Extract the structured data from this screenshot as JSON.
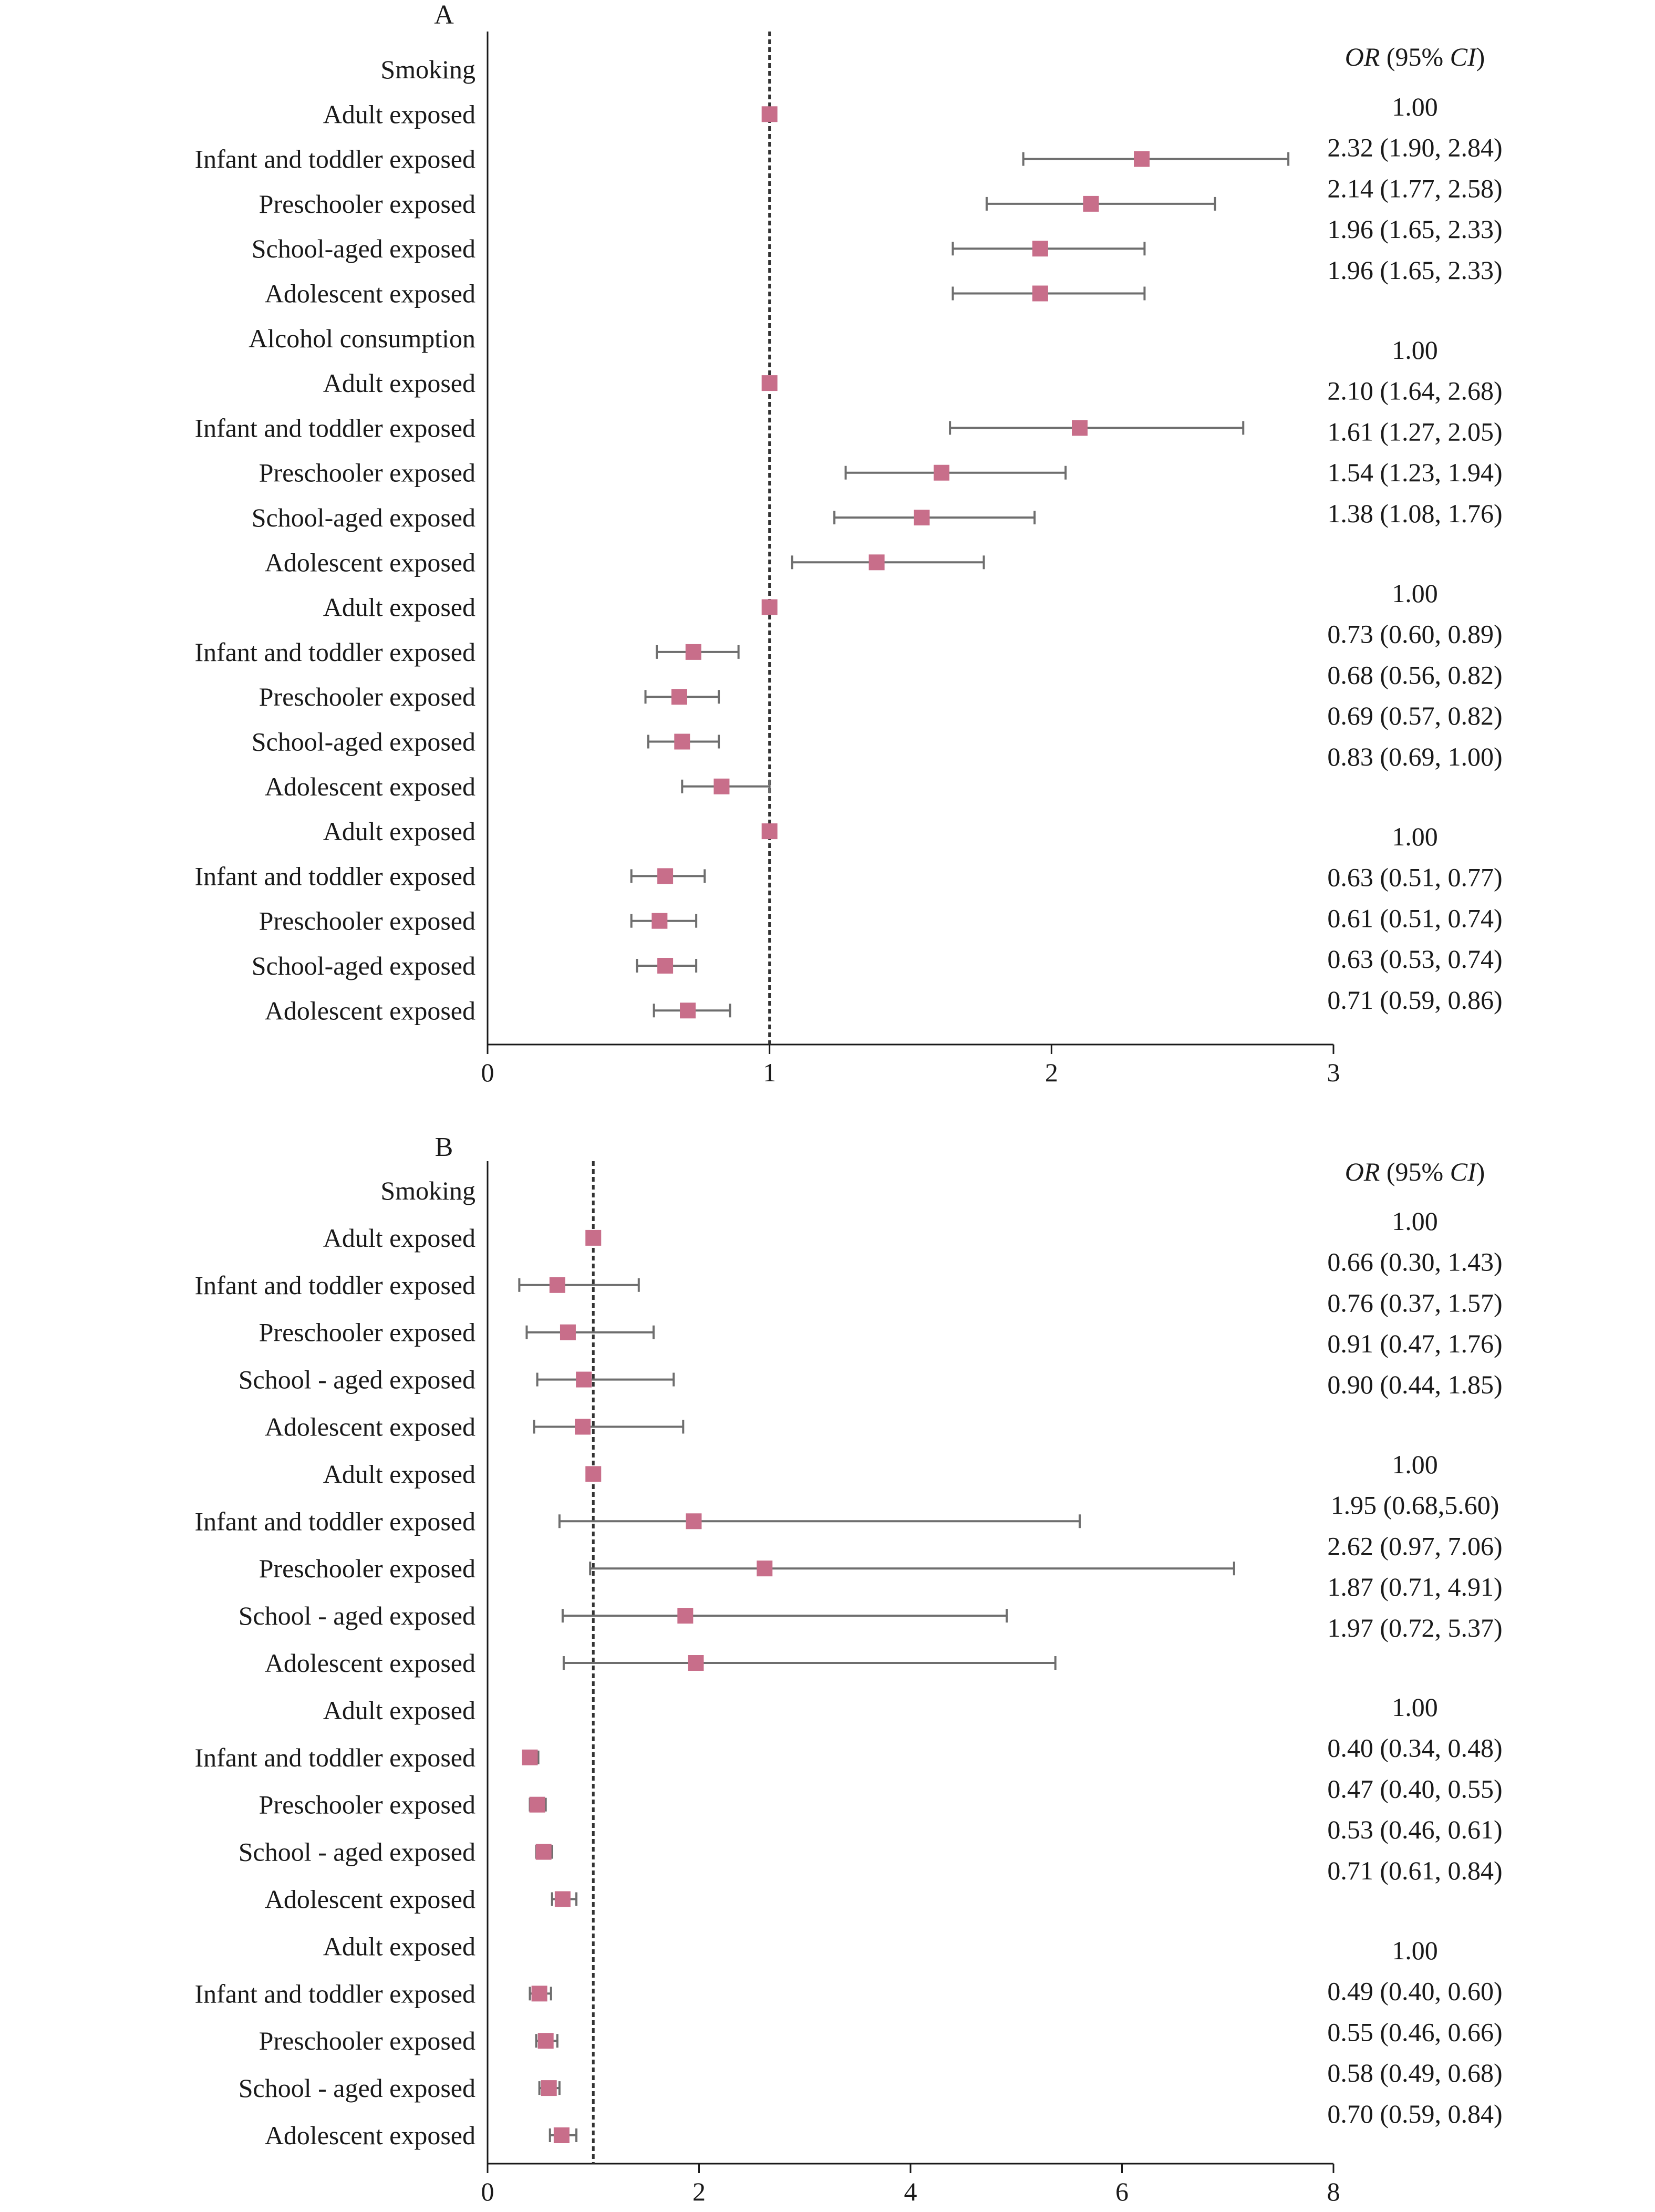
{
  "chart_data": [
    {
      "type": "forest",
      "panel_label": "A",
      "header": {
        "or": "OR",
        "ci": "CI"
      },
      "reference_line": 1,
      "xlim": [
        0,
        3
      ],
      "xticks": [
        0,
        1,
        2,
        3
      ],
      "rows": [
        {
          "label": "Smoking",
          "heading": true
        },
        {
          "label": "Adult exposed",
          "or": 1.0
        },
        {
          "label": "Infant and toddler exposed",
          "or": 2.32,
          "lo": 1.9,
          "hi": 2.84
        },
        {
          "label": "Preschooler exposed",
          "or": 2.14,
          "lo": 1.77,
          "hi": 2.58
        },
        {
          "label": "School-aged exposed",
          "or": 1.96,
          "lo": 1.65,
          "hi": 2.33
        },
        {
          "label": "Adolescent exposed",
          "or": 1.96,
          "lo": 1.65,
          "hi": 2.33
        },
        {
          "label": "Alcohol consumption",
          "heading": true
        },
        {
          "label": "Adult exposed",
          "or": 1.0
        },
        {
          "label": "Infant and toddler exposed",
          "or": 2.1,
          "lo": 1.64,
          "hi": 2.68
        },
        {
          "label": "Preschooler exposed",
          "or": 1.61,
          "lo": 1.27,
          "hi": 2.05
        },
        {
          "label": "School-aged exposed",
          "or": 1.54,
          "lo": 1.23,
          "hi": 1.94
        },
        {
          "label": "Adolescent exposed",
          "or": 1.38,
          "lo": 1.08,
          "hi": 1.76
        },
        {
          "label": "Adult exposed",
          "or": 1.0
        },
        {
          "label": "Infant and toddler exposed",
          "or": 0.73,
          "lo": 0.6,
          "hi": 0.89
        },
        {
          "label": "Preschooler exposed",
          "or": 0.68,
          "lo": 0.56,
          "hi": 0.82
        },
        {
          "label": "School-aged exposed",
          "or": 0.69,
          "lo": 0.57,
          "hi": 0.82
        },
        {
          "label": "Adolescent exposed",
          "or": 0.83,
          "lo": 0.69,
          "hi": 1.0
        },
        {
          "label": "Adult exposed",
          "or": 1.0
        },
        {
          "label": "Infant and toddler exposed",
          "or": 0.63,
          "lo": 0.51,
          "hi": 0.77
        },
        {
          "label": "Preschooler exposed",
          "or": 0.61,
          "lo": 0.51,
          "hi": 0.74
        },
        {
          "label": "School-aged exposed",
          "or": 0.63,
          "lo": 0.53,
          "hi": 0.74
        },
        {
          "label": "Adolescent exposed",
          "or": 0.71,
          "lo": 0.59,
          "hi": 0.86
        }
      ],
      "or_texts": [
        "1.00",
        "2.32 (1.90, 2.84)",
        "2.14 (1.77, 2.58)",
        "1.96 (1.65, 2.33)",
        "1.96 (1.65, 2.33)",
        "1.00",
        "2.10 (1.64, 2.68)",
        "1.61 (1.27, 2.05)",
        "1.54 (1.23, 1.94)",
        "1.38 (1.08, 1.76)",
        "1.00",
        "0.73 (0.60, 0.89)",
        "0.68 (0.56, 0.82)",
        "0.69 (0.57, 0.82)",
        "0.83 (0.69, 1.00)",
        "1.00",
        "0.63 (0.51, 0.77)",
        "0.61 (0.51, 0.74)",
        "0.63 (0.53, 0.74)",
        "0.71 (0.59, 0.86)"
      ]
    },
    {
      "type": "forest",
      "panel_label": "B",
      "header": {
        "or": "OR",
        "ci": "CI"
      },
      "reference_line": 1,
      "xlim": [
        0,
        8
      ],
      "xticks": [
        0,
        2,
        4,
        6,
        8
      ],
      "rows": [
        {
          "label": "Smoking",
          "heading": true
        },
        {
          "label": "Adult exposed",
          "or": 1.0
        },
        {
          "label": "Infant and toddler exposed",
          "or": 0.66,
          "lo": 0.3,
          "hi": 1.43
        },
        {
          "label": "Preschooler exposed",
          "or": 0.76,
          "lo": 0.37,
          "hi": 1.57
        },
        {
          "label": "School - aged exposed",
          "or": 0.91,
          "lo": 0.47,
          "hi": 1.76
        },
        {
          "label": "Adolescent exposed",
          "or": 0.9,
          "lo": 0.44,
          "hi": 1.85
        },
        {
          "label": "Adult exposed",
          "or": 1.0
        },
        {
          "label": "Infant and toddler exposed",
          "or": 1.95,
          "lo": 0.68,
          "hi": 5.6
        },
        {
          "label": "Preschooler exposed",
          "or": 2.62,
          "lo": 0.97,
          "hi": 7.06
        },
        {
          "label": "School - aged exposed",
          "or": 1.87,
          "lo": 0.71,
          "hi": 4.91
        },
        {
          "label": "Adolescent exposed",
          "or": 1.97,
          "lo": 0.72,
          "hi": 5.37
        },
        {
          "label": "Adult exposed"
        },
        {
          "label": "Infant and toddler exposed",
          "or": 0.4,
          "lo": 0.34,
          "hi": 0.48
        },
        {
          "label": "Preschooler exposed",
          "or": 0.47,
          "lo": 0.4,
          "hi": 0.55
        },
        {
          "label": "School - aged exposed",
          "or": 0.53,
          "lo": 0.46,
          "hi": 0.61
        },
        {
          "label": "Adolescent exposed",
          "or": 0.71,
          "lo": 0.61,
          "hi": 0.84
        },
        {
          "label": "Adult exposed"
        },
        {
          "label": "Infant and toddler exposed",
          "or": 0.49,
          "lo": 0.4,
          "hi": 0.6
        },
        {
          "label": "Preschooler exposed",
          "or": 0.55,
          "lo": 0.46,
          "hi": 0.66
        },
        {
          "label": "School - aged exposed",
          "or": 0.58,
          "lo": 0.49,
          "hi": 0.68
        },
        {
          "label": "Adolescent exposed",
          "or": 0.7,
          "lo": 0.59,
          "hi": 0.84
        }
      ],
      "or_texts": [
        "1.00",
        "0.66 (0.30, 1.43)",
        "0.76 (0.37, 1.57)",
        "0.91 (0.47, 1.76)",
        "0.90 (0.44, 1.85)",
        "1.00",
        "1.95 (0.68,5.60)",
        "2.62 (0.97, 7.06)",
        "1.87 (0.71, 4.91)",
        "1.97 (0.72, 5.37)",
        "1.00",
        "0.40 (0.34, 0.48)",
        "0.47 (0.40, 0.55)",
        "0.53 (0.46, 0.61)",
        "0.71 (0.61, 0.84)",
        "1.00",
        "0.49 (0.40, 0.60)",
        "0.55 (0.46, 0.66)",
        "0.58 (0.49, 0.68)",
        "0.70 (0.59, 0.84)"
      ]
    }
  ],
  "colors": {
    "marker": "#c86e8a",
    "whisker": "#6e6e6e",
    "axis": "#1a1a1a",
    "reference_line": "#333333"
  }
}
